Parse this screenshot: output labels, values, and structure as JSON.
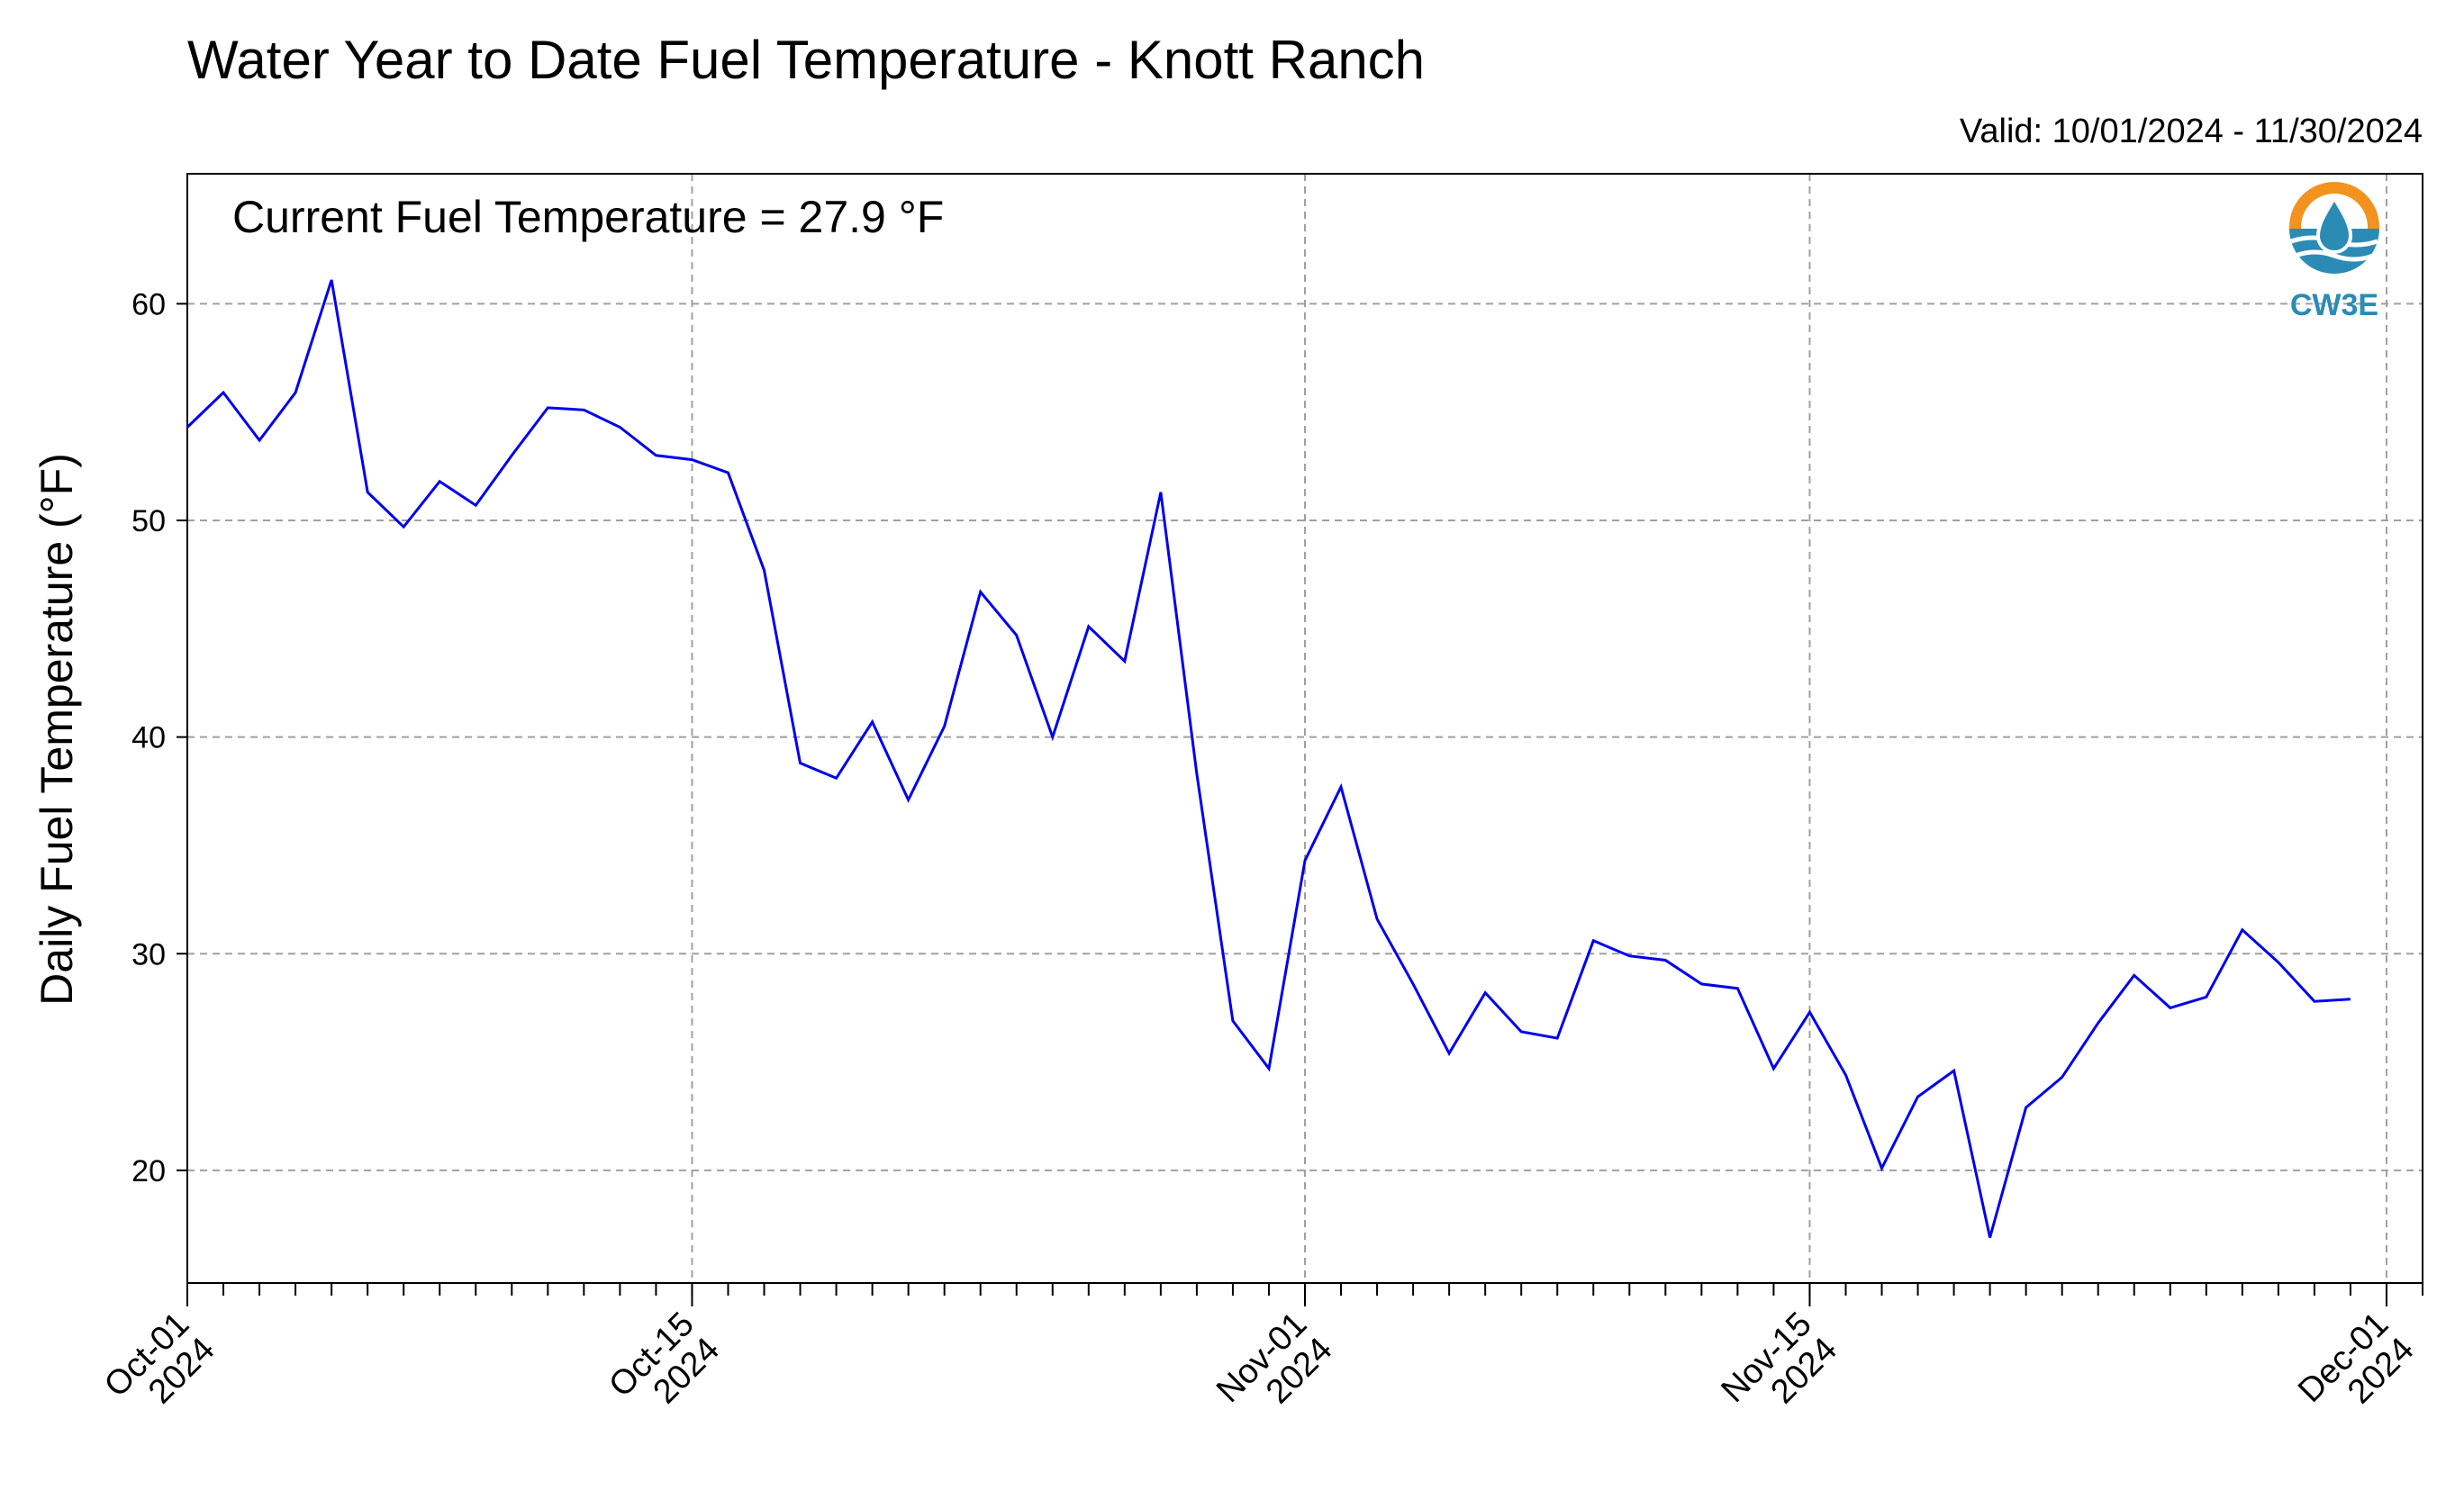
{
  "title": "Water Year to Date Fuel Temperature - Knott Ranch",
  "valid_text": "Valid: 10/01/2024 - 11/30/2024",
  "annotation": "Current Fuel Temperature = 27.9  °F",
  "logo": {
    "text": "CW3E",
    "icon": "cw3e-water-drop-logo"
  },
  "colors": {
    "series": "#0000ee",
    "grid": "#a0a0a0",
    "logo_orange": "#f3921e",
    "logo_blue": "#2a8cb5"
  },
  "chart_data": {
    "type": "line",
    "title": "Water Year to Date Fuel Temperature - Knott Ranch",
    "xlabel": "",
    "ylabel": "Daily Fuel Temperature (°F)",
    "xlim": [
      "2024-10-01",
      "2024-12-02"
    ],
    "ylim": [
      14.8,
      66
    ],
    "grid": true,
    "y_ticks": [
      20,
      30,
      40,
      50,
      60
    ],
    "x_ticks": [
      {
        "date": "2024-10-01",
        "label1": "Oct-01",
        "label2": "2024"
      },
      {
        "date": "2024-10-15",
        "label1": "Oct-15",
        "label2": "2024"
      },
      {
        "date": "2024-11-01",
        "label1": "Nov-01",
        "label2": "2024"
      },
      {
        "date": "2024-11-15",
        "label1": "Nov-15",
        "label2": "2024"
      },
      {
        "date": "2024-12-01",
        "label1": "Dec-01",
        "label2": "2024"
      }
    ],
    "series": [
      {
        "start_date": "2024-10-01",
        "values": [
          54.3,
          55.9,
          53.7,
          55.9,
          61.1,
          51.3,
          49.7,
          51.8,
          50.7,
          53.0,
          55.2,
          55.1,
          54.3,
          53.0,
          52.8,
          52.2,
          47.7,
          38.8,
          38.1,
          40.7,
          37.1,
          40.5,
          46.7,
          44.7,
          40.0,
          45.1,
          43.5,
          51.3,
          38.3,
          26.9,
          24.7,
          34.3,
          37.7,
          31.6,
          28.6,
          25.4,
          28.2,
          26.4,
          26.1,
          30.6,
          29.9,
          29.7,
          28.6,
          28.4,
          24.7,
          27.3,
          24.4,
          20.1,
          23.4,
          24.6,
          16.9,
          22.9,
          24.3,
          26.8,
          29.0,
          27.5,
          28.0,
          31.1,
          29.6,
          27.8,
          27.9
        ]
      }
    ]
  }
}
